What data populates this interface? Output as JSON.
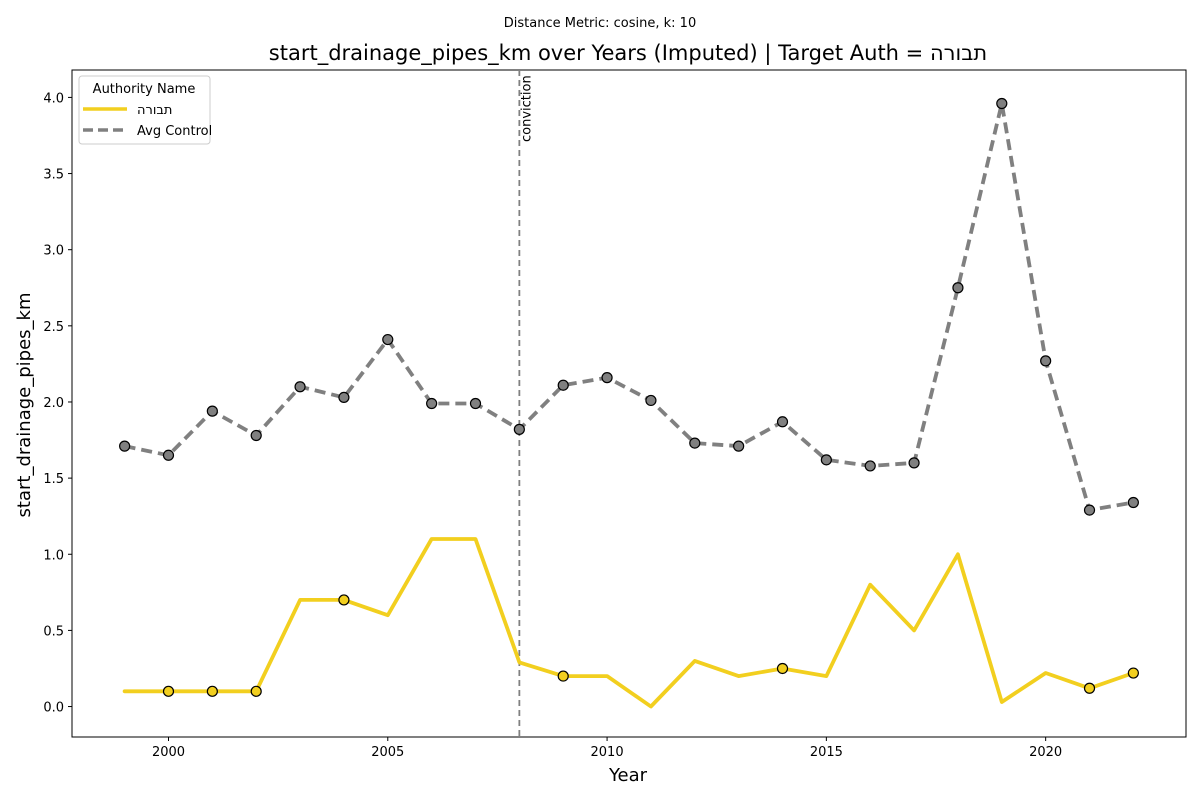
{
  "chart_data": {
    "type": "line",
    "supertitle": "Distance Metric: cosine, k: 10",
    "title": "start_drainage_pipes_km over Years (Imputed) | Target Auth = תבורה",
    "xlabel": "Year",
    "ylabel": "start_drainage_pipes_km",
    "xlim": [
      1997.8,
      2023.2
    ],
    "ylim": [
      -0.2,
      4.18
    ],
    "xticks": [
      2000,
      2005,
      2010,
      2015,
      2020
    ],
    "xtick_labels": [
      "2000",
      "2005",
      "2010",
      "2015",
      "2020"
    ],
    "yticks": [
      0.0,
      0.5,
      1.0,
      1.5,
      2.0,
      2.5,
      3.0,
      3.5,
      4.0
    ],
    "ytick_labels": [
      "0.0",
      "0.5",
      "1.0",
      "1.5",
      "2.0",
      "2.5",
      "3.0",
      "3.5",
      "4.0"
    ],
    "grid": false,
    "legend": {
      "title": "Authority Name",
      "placement": "upper-left",
      "entries": [
        "תבורה",
        "Avg Control"
      ]
    },
    "series": [
      {
        "name": "תבורה",
        "color": "#f2cf1f",
        "line_style": "solid",
        "x": [
          1999,
          2000,
          2001,
          2002,
          2003,
          2004,
          2005,
          2006,
          2007,
          2008,
          2009,
          2010,
          2011,
          2012,
          2013,
          2014,
          2015,
          2016,
          2017,
          2018,
          2019,
          2020,
          2021,
          2022
        ],
        "y": [
          0.1,
          0.1,
          0.1,
          0.1,
          0.7,
          0.7,
          0.6,
          1.1,
          1.1,
          0.29,
          0.2,
          0.2,
          0.0,
          0.3,
          0.2,
          0.25,
          0.2,
          0.8,
          0.5,
          1.0,
          0.03,
          0.22,
          0.12,
          0.22
        ],
        "marker_years": [
          2000,
          2001,
          2002,
          2004,
          2009,
          2014,
          2021,
          2022
        ]
      },
      {
        "name": "Avg Control",
        "color": "#808080",
        "line_style": "dashed",
        "x": [
          1999,
          2000,
          2001,
          2002,
          2003,
          2004,
          2005,
          2006,
          2007,
          2008,
          2009,
          2010,
          2011,
          2012,
          2013,
          2014,
          2015,
          2016,
          2017,
          2018,
          2019,
          2020,
          2021,
          2022
        ],
        "y": [
          1.71,
          1.65,
          1.94,
          1.78,
          2.1,
          2.03,
          2.41,
          1.99,
          1.99,
          1.82,
          2.11,
          2.16,
          2.01,
          1.73,
          1.71,
          1.87,
          1.62,
          1.58,
          1.6,
          2.75,
          3.96,
          2.27,
          1.29,
          1.34
        ],
        "marker_years": [
          1999,
          2000,
          2001,
          2002,
          2003,
          2004,
          2005,
          2006,
          2007,
          2008,
          2009,
          2010,
          2011,
          2012,
          2013,
          2014,
          2015,
          2016,
          2017,
          2018,
          2019,
          2020,
          2021,
          2022
        ]
      }
    ],
    "annotations": [
      {
        "type": "vline",
        "x": 2008,
        "label": "conviction",
        "color": "#808080"
      }
    ]
  }
}
